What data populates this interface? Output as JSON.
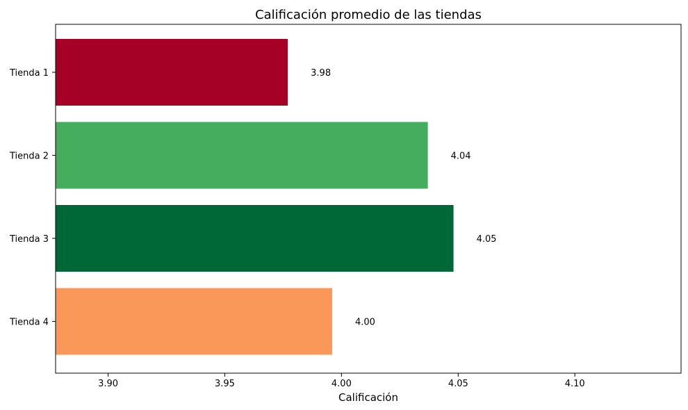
{
  "chart_data": {
    "type": "bar",
    "orientation": "horizontal",
    "title": "Calificación promedio de las tiendas",
    "xlabel": "Calificación",
    "ylabel": "",
    "categories": [
      "Tienda 1",
      "Tienda 2",
      "Tienda 3",
      "Tienda 4"
    ],
    "values": [
      3.977,
      4.037,
      4.048,
      3.996
    ],
    "data_labels": [
      "3.98",
      "4.04",
      "4.05",
      "4.00"
    ],
    "colors": [
      "#a50026",
      "#44ae5e",
      "#006837",
      "#f99858"
    ],
    "xlim": [
      3.8775,
      4.1455
    ],
    "xticks": [
      3.9,
      3.95,
      4.0,
      4.05,
      4.1
    ],
    "xtick_labels": [
      "3.90",
      "3.95",
      "4.00",
      "4.05",
      "4.10"
    ],
    "grid": false,
    "legend": "none"
  }
}
